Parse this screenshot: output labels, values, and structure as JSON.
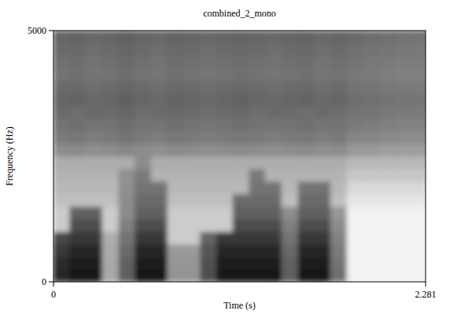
{
  "chart_data": {
    "type": "heatmap",
    "title": "combined_2_mono",
    "x_label": "Time (s)",
    "y_label": "Frequency (Hz)",
    "xlim": [
      0,
      2.281
    ],
    "xticks": [
      0,
      2.281
    ],
    "ylim": [
      0,
      5000
    ],
    "yticks": [
      0,
      5000
    ],
    "color": "#000000",
    "color_range": [
      0,
      100
    ],
    "x": [
      0,
      0.1,
      0.2,
      0.3,
      0.4,
      0.5,
      0.6,
      0.7,
      0.8,
      0.9,
      1.0,
      1.1,
      1.2,
      1.3,
      1.4,
      1.5,
      1.6,
      1.7,
      1.8,
      1.9,
      2.0,
      2.1,
      2.2
    ],
    "y": [
      0,
      250,
      500,
      750,
      1000,
      1250,
      1500,
      1750,
      2000,
      2250,
      2500,
      2750,
      3000,
      3250,
      3500,
      3750,
      4000,
      4250,
      4500,
      4750
    ],
    "cells": [
      [
        85,
        92,
        92,
        34,
        63,
        92,
        92,
        42,
        42,
        70,
        92,
        92,
        92,
        92,
        63,
        92,
        92,
        56,
        5,
        5,
        5,
        5,
        5
      ],
      [
        83,
        90,
        90,
        34,
        62,
        90,
        90,
        41,
        41,
        69,
        90,
        90,
        90,
        90,
        62,
        90,
        90,
        55,
        5,
        5,
        5,
        5,
        5
      ],
      [
        78,
        85,
        85,
        33,
        59,
        85,
        85,
        40,
        40,
        66,
        85,
        85,
        85,
        85,
        59,
        85,
        85,
        52,
        5,
        5,
        5,
        5,
        5
      ],
      [
        72,
        78,
        78,
        32,
        55,
        78,
        78,
        20,
        20,
        61,
        78,
        78,
        78,
        78,
        55,
        78,
        78,
        49,
        5,
        5,
        5,
        5,
        5
      ],
      [
        20,
        70,
        70,
        20,
        50,
        70,
        70,
        20,
        20,
        20,
        20,
        70,
        70,
        70,
        50,
        70,
        70,
        45,
        5,
        5,
        5,
        5,
        5
      ],
      [
        20,
        62,
        62,
        20,
        45,
        62,
        62,
        20,
        20,
        20,
        20,
        62,
        62,
        62,
        45,
        62,
        62,
        41,
        5,
        5,
        5,
        5,
        5
      ],
      [
        25,
        25,
        25,
        25,
        45,
        58,
        58,
        25,
        25,
        25,
        25,
        58,
        58,
        58,
        25,
        58,
        58,
        25,
        10,
        10,
        10,
        10,
        10
      ],
      [
        28,
        28,
        28,
        28,
        44,
        55,
        55,
        28,
        28,
        28,
        28,
        28,
        55,
        55,
        28,
        55,
        55,
        28,
        15,
        15,
        15,
        15,
        15
      ],
      [
        30,
        30,
        30,
        30,
        43,
        52,
        30,
        30,
        30,
        30,
        30,
        30,
        52,
        30,
        30,
        30,
        30,
        30,
        22,
        22,
        22,
        22,
        22
      ],
      [
        32,
        32,
        32,
        32,
        32,
        45,
        32,
        32,
        32,
        32,
        32,
        32,
        32,
        32,
        32,
        32,
        32,
        32,
        28,
        28,
        28,
        28,
        28
      ],
      [
        45,
        46,
        44,
        45,
        47,
        45,
        44,
        46,
        45,
        44,
        45,
        46,
        45,
        44,
        45,
        46,
        44,
        45,
        40,
        40,
        38,
        38,
        38
      ],
      [
        52,
        53,
        51,
        52,
        54,
        52,
        51,
        53,
        52,
        51,
        52,
        53,
        52,
        51,
        52,
        53,
        51,
        52,
        48,
        47,
        46,
        45,
        45
      ],
      [
        55,
        56,
        54,
        55,
        57,
        55,
        54,
        56,
        55,
        54,
        55,
        56,
        55,
        54,
        55,
        56,
        54,
        55,
        52,
        51,
        50,
        49,
        49
      ],
      [
        58,
        57,
        59,
        58,
        60,
        57,
        58,
        59,
        58,
        57,
        58,
        59,
        57,
        58,
        58,
        57,
        58,
        57,
        55,
        54,
        53,
        52,
        52
      ],
      [
        60,
        61,
        59,
        60,
        62,
        60,
        59,
        61,
        60,
        59,
        60,
        61,
        60,
        59,
        60,
        61,
        59,
        60,
        57,
        56,
        55,
        54,
        54
      ],
      [
        58,
        59,
        57,
        58,
        60,
        58,
        57,
        59,
        58,
        57,
        58,
        59,
        58,
        57,
        58,
        59,
        57,
        58,
        55,
        54,
        53,
        52,
        52
      ],
      [
        55,
        56,
        54,
        55,
        57,
        55,
        54,
        56,
        55,
        54,
        55,
        56,
        55,
        54,
        55,
        56,
        54,
        55,
        53,
        52,
        51,
        50,
        50
      ],
      [
        56,
        57,
        55,
        56,
        58,
        56,
        55,
        57,
        56,
        55,
        56,
        57,
        56,
        55,
        56,
        57,
        55,
        56,
        54,
        53,
        52,
        51,
        51
      ],
      [
        58,
        59,
        57,
        58,
        60,
        58,
        57,
        59,
        58,
        57,
        58,
        59,
        58,
        57,
        58,
        59,
        57,
        58,
        56,
        55,
        54,
        53,
        53
      ],
      [
        60,
        61,
        59,
        60,
        62,
        60,
        59,
        61,
        60,
        59,
        60,
        61,
        60,
        59,
        60,
        61,
        59,
        60,
        58,
        57,
        56,
        55,
        55
      ]
    ]
  }
}
